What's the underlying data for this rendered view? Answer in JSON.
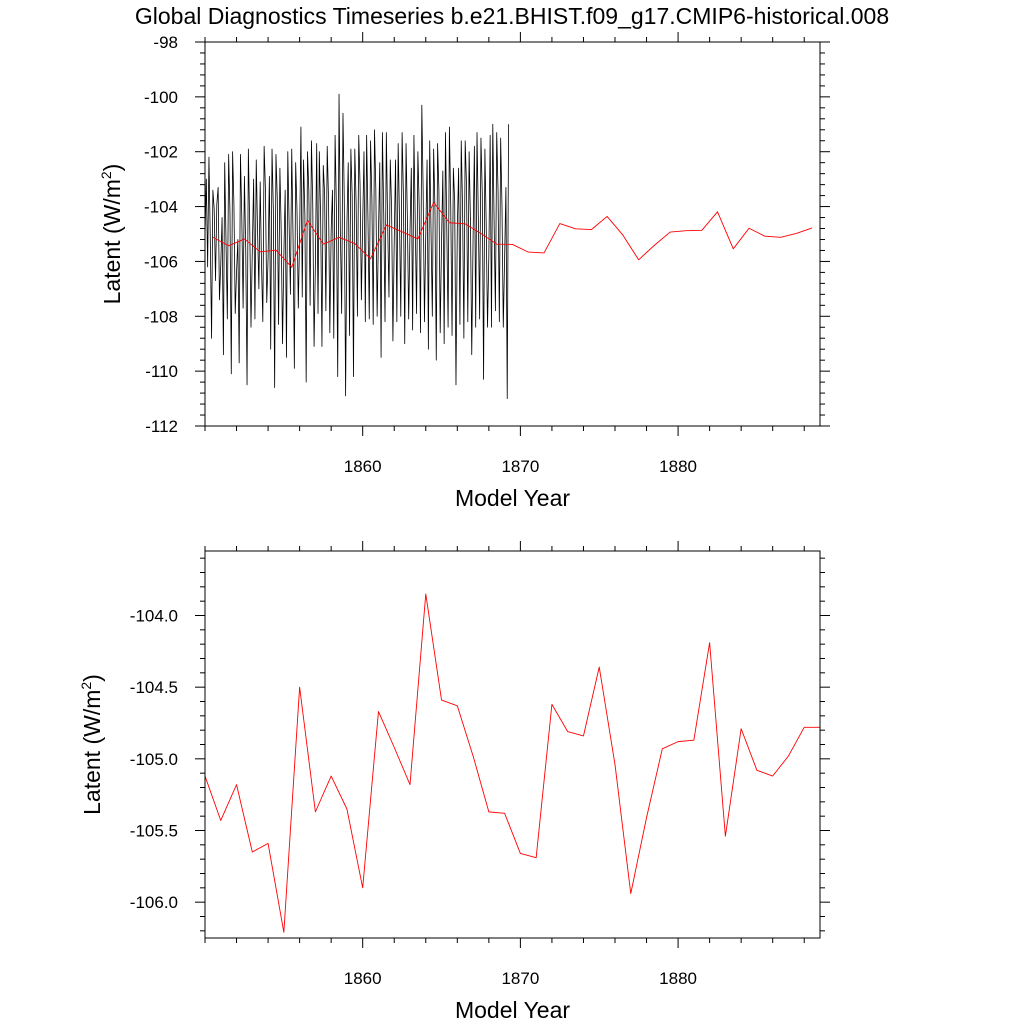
{
  "figure_title": "Global Diagnostics Timeseries b.e21.BHIST.f09_g17.CMIP6-historical.008",
  "colors": {
    "monthly": "#000000",
    "annual": "#ff0000",
    "axis": "#000000"
  },
  "chart_data": [
    {
      "type": "line",
      "title": "Global Diagnostics Timeseries b.e21.BHIST.f09_g17.CMIP6-historical.008",
      "xlabel": "Model Year",
      "ylabel_main": "Latent (W/m",
      "ylabel_sup": "2",
      "ylabel_tail": ")",
      "xlim": [
        1850,
        1889
      ],
      "ylim": [
        -112,
        -98
      ],
      "x_ticks": [
        1860,
        1870,
        1880
      ],
      "x_tick_labels": [
        "1860",
        "1870",
        "1880"
      ],
      "y_ticks": [
        -112,
        -110,
        -108,
        -106,
        -104,
        -102,
        -100,
        -98
      ],
      "y_tick_labels": [
        "-112",
        "-110",
        "-108",
        "-106",
        "-104",
        "-102",
        "-100",
        "-98"
      ],
      "grid": false,
      "series": [
        {
          "name": "monthly",
          "color": "#000000",
          "x_start": 1850.0,
          "x_step": 0.08333,
          "values": [
            -105.1,
            -103.0,
            -106.2,
            -102.2,
            -105.1,
            -108.8,
            -103.4,
            -104.1,
            -106.7,
            -103.9,
            -103.3,
            -107.4,
            -106.1,
            -104.4,
            -109.4,
            -102.4,
            -105.3,
            -108.1,
            -102.1,
            -104.2,
            -110.1,
            -102.0,
            -103.9,
            -107.9,
            -106.4,
            -105.2,
            -109.7,
            -102.1,
            -104.4,
            -107.7,
            -102.9,
            -105.6,
            -110.5,
            -101.9,
            -104.6,
            -108.4,
            -105.6,
            -103.0,
            -108.1,
            -102.3,
            -104.9,
            -107.0,
            -103.1,
            -106.1,
            -108.2,
            -101.8,
            -103.4,
            -107.5,
            -105.9,
            -102.9,
            -109.2,
            -101.9,
            -104.1,
            -110.6,
            -102.1,
            -103.7,
            -108.3,
            -102.6,
            -104.9,
            -109.0,
            -105.8,
            -103.4,
            -109.5,
            -102.0,
            -104.6,
            -107.2,
            -101.9,
            -105.1,
            -109.9,
            -102.4,
            -104.1,
            -107.7,
            -105.1,
            -101.1,
            -107.3,
            -102.3,
            -104.3,
            -110.4,
            -102.0,
            -103.4,
            -107.6,
            -101.6,
            -103.9,
            -109.1,
            -106.1,
            -101.7,
            -107.9,
            -102.0,
            -104.4,
            -109.1,
            -102.5,
            -103.5,
            -107.8,
            -101.8,
            -103.7,
            -108.6,
            -104.9,
            -103.4,
            -108.8,
            -101.4,
            -104.1,
            -110.2,
            -99.9,
            -104.9,
            -107.9,
            -100.6,
            -103.8,
            -110.9,
            -104.6,
            -102.4,
            -108.7,
            -101.9,
            -103.6,
            -110.2,
            -101.9,
            -103.9,
            -108.0,
            -101.4,
            -103.2,
            -107.4,
            -104.6,
            -102.0,
            -108.2,
            -101.4,
            -104.4,
            -108.1,
            -101.6,
            -103.7,
            -108.3,
            -101.2,
            -103.4,
            -108.0,
            -105.0,
            -102.4,
            -109.5,
            -101.3,
            -104.2,
            -108.2,
            -101.3,
            -104.6,
            -107.3,
            -102.3,
            -104.1,
            -108.9,
            -105.3,
            -102.3,
            -108.2,
            -101.7,
            -104.4,
            -108.0,
            -101.3,
            -103.6,
            -109.0,
            -101.7,
            -104.4,
            -108.1,
            -104.9,
            -102.6,
            -108.5,
            -101.4,
            -104.6,
            -107.9,
            -102.0,
            -104.0,
            -108.6,
            -100.3,
            -103.4,
            -108.2,
            -105.0,
            -102.3,
            -109.2,
            -101.6,
            -104.9,
            -108.0,
            -101.9,
            -104.1,
            -109.6,
            -101.7,
            -103.4,
            -108.6,
            -105.3,
            -102.7,
            -109.0,
            -101.3,
            -104.8,
            -108.4,
            -101.1,
            -104.0,
            -108.7,
            -102.6,
            -103.8,
            -110.5,
            -104.8,
            -102.6,
            -108.3,
            -101.6,
            -104.0,
            -108.8,
            -101.6,
            -103.2,
            -108.2,
            -102.0,
            -104.5,
            -109.4,
            -105.2,
            -101.8,
            -108.4,
            -101.3,
            -104.4,
            -108.1,
            -101.5,
            -103.5,
            -110.3,
            -101.9,
            -104.7,
            -108.4,
            -105.8,
            -101.4,
            -108.4,
            -101.0,
            -104.5,
            -107.8,
            -101.3,
            -103.4,
            -108.2,
            -101.5,
            -104.0,
            -108.4,
            -105.9,
            -103.3,
            -111.0,
            -101.0
          ]
        },
        {
          "name": "annual",
          "color": "#ff0000",
          "x": [
            1850.5,
            1851.5,
            1852.5,
            1853.5,
            1854.5,
            1855.5,
            1856.5,
            1857.5,
            1858.5,
            1859.5,
            1860.5,
            1861.5,
            1862.5,
            1863.5,
            1864.5,
            1865.5,
            1866.5,
            1867.5,
            1868.5,
            1869.5,
            1870.5,
            1871.5,
            1872.5,
            1873.5,
            1874.5,
            1875.5,
            1876.5,
            1877.5,
            1878.5,
            1879.5,
            1880.5,
            1881.5,
            1882.5,
            1883.5,
            1884.5,
            1885.5,
            1886.5,
            1887.5,
            1888.5
          ],
          "values": [
            -105.12,
            -105.43,
            -105.18,
            -105.65,
            -105.59,
            -106.21,
            -104.5,
            -105.37,
            -105.12,
            -105.35,
            -105.9,
            -104.67,
            -104.92,
            -105.18,
            -103.85,
            -104.59,
            -104.63,
            -104.98,
            -105.37,
            -105.38,
            -105.66,
            -105.69,
            -104.62,
            -104.81,
            -104.84,
            -104.36,
            -105.04,
            -105.94,
            -105.41,
            -104.93,
            -104.88,
            -104.87,
            -104.19,
            -105.54,
            -104.79,
            -105.08,
            -105.12,
            -104.98,
            -104.78
          ]
        }
      ]
    },
    {
      "type": "line",
      "xlabel": "Model Year",
      "ylabel_main": "Latent (W/m",
      "ylabel_sup": "2",
      "ylabel_tail": ")",
      "xlim": [
        1850,
        1889
      ],
      "ylim": [
        -106.25,
        -103.55
      ],
      "x_ticks": [
        1860,
        1870,
        1880
      ],
      "x_tick_labels": [
        "1860",
        "1870",
        "1880"
      ],
      "y_ticks": [
        -106.0,
        -105.5,
        -105.0,
        -104.5,
        -104.0
      ],
      "y_tick_labels": [
        "-106.0",
        "-105.5",
        "-105.0",
        "-104.5",
        "-104.0"
      ],
      "grid": false,
      "series": [
        {
          "name": "annual",
          "color": "#ff0000",
          "x": [
            1850.0,
            1851.0,
            1852.0,
            1853.0,
            1854.0,
            1855.0,
            1856.0,
            1857.0,
            1858.0,
            1859.0,
            1860.0,
            1861.0,
            1862.0,
            1863.0,
            1864.0,
            1865.0,
            1866.0,
            1867.0,
            1868.0,
            1869.0,
            1870.0,
            1871.0,
            1872.0,
            1873.0,
            1874.0,
            1875.0,
            1876.0,
            1877.0,
            1878.0,
            1879.0,
            1880.0,
            1881.0,
            1882.0,
            1883.0,
            1884.0,
            1885.0,
            1886.0,
            1887.0,
            1888.0,
            1889.0
          ],
          "values": [
            -105.12,
            -105.43,
            -105.18,
            -105.65,
            -105.59,
            -106.21,
            -104.5,
            -105.37,
            -105.12,
            -105.35,
            -105.9,
            -104.67,
            -104.92,
            -105.18,
            -103.85,
            -104.59,
            -104.63,
            -104.98,
            -105.37,
            -105.38,
            -105.66,
            -105.69,
            -104.62,
            -104.81,
            -104.84,
            -104.36,
            -105.04,
            -105.94,
            -105.41,
            -104.93,
            -104.88,
            -104.87,
            -104.19,
            -105.54,
            -104.79,
            -105.08,
            -105.12,
            -104.98,
            -104.78,
            -104.78
          ]
        }
      ]
    }
  ]
}
